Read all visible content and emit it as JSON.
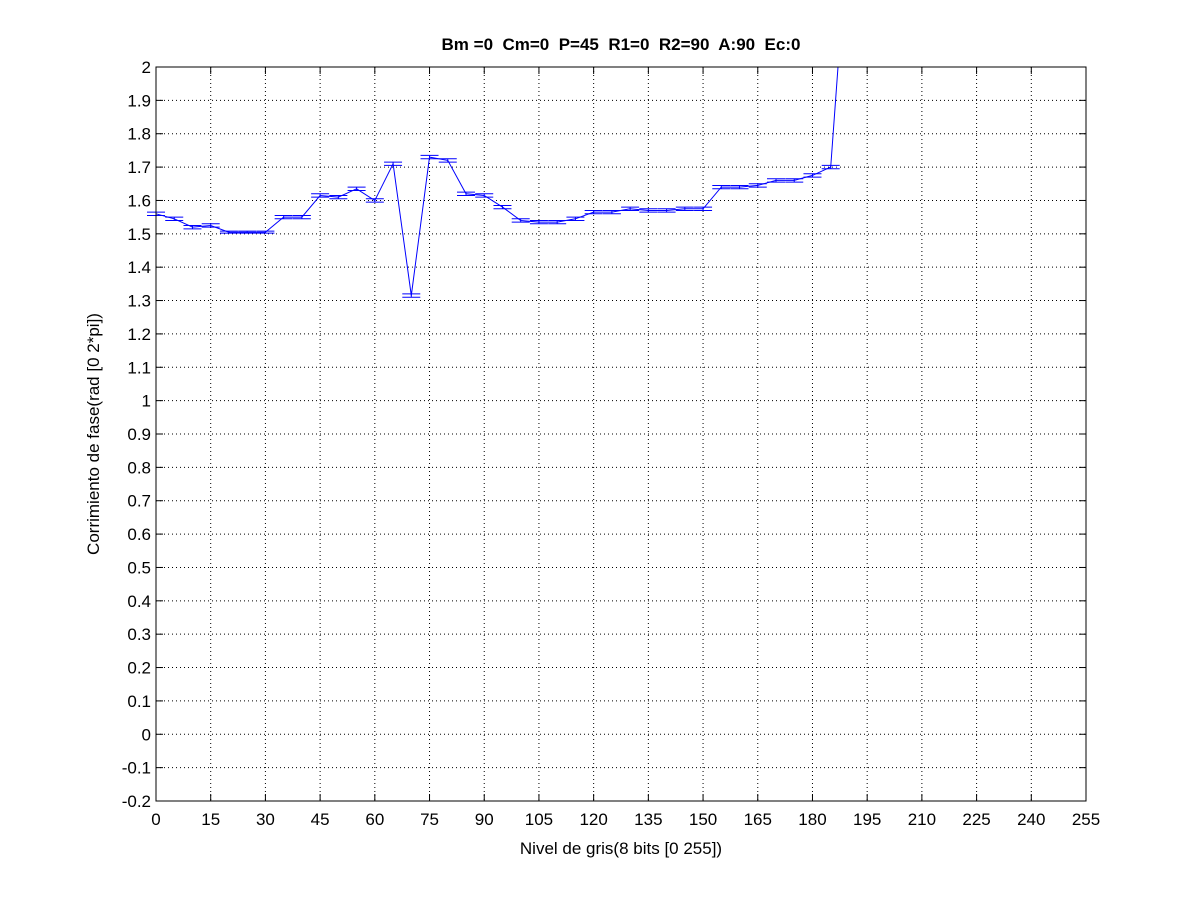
{
  "chart_data": {
    "type": "line",
    "title": "Bm =0  Cm=0  P=45  R1=0  R2=90  A:90  Ec:0",
    "xlabel": "Nivel de gris(8 bits [0 255])",
    "ylabel": "Corrimiento de fase(rad [0 2*pi])",
    "xlim": [
      0,
      255
    ],
    "ylim": [
      -0.2,
      2
    ],
    "x_ticks": [
      "0",
      "15",
      "30",
      "45",
      "60",
      "75",
      "90",
      "105",
      "120",
      "135",
      "150",
      "165",
      "180",
      "195",
      "210",
      "225",
      "240",
      "255"
    ],
    "y_ticks": [
      "-0.2",
      "-0.1",
      "0",
      "0.1",
      "0.2",
      "0.3",
      "0.4",
      "0.5",
      "0.6",
      "0.7",
      "0.8",
      "0.9",
      "1",
      "1.1",
      "1.2",
      "1.3",
      "1.4",
      "1.5",
      "1.6",
      "1.7",
      "1.8",
      "1.9",
      "2"
    ],
    "grid": true,
    "line_color": "#0000ff",
    "series": [
      {
        "x": [
          0,
          5,
          10,
          15,
          20,
          25,
          30,
          35,
          40,
          45,
          50,
          55,
          60,
          65,
          70,
          75,
          80,
          85,
          90,
          95,
          100,
          105,
          110,
          115,
          120,
          125,
          130,
          135,
          140,
          145,
          150,
          155,
          160,
          165,
          170,
          175,
          180,
          185,
          187
        ],
        "y": [
          1.56,
          1.545,
          1.52,
          1.525,
          1.505,
          1.505,
          1.505,
          1.55,
          1.55,
          1.615,
          1.61,
          1.635,
          1.6,
          1.71,
          1.315,
          1.73,
          1.72,
          1.62,
          1.615,
          1.58,
          1.54,
          1.535,
          1.535,
          1.545,
          1.565,
          1.565,
          1.575,
          1.57,
          1.57,
          1.575,
          1.575,
          1.64,
          1.64,
          1.645,
          1.66,
          1.66,
          1.675,
          1.7,
          2.0
        ],
        "errors": [
          0.005,
          0.005,
          0.005,
          0.005,
          0.003,
          0.003,
          0.003,
          0.005,
          0.005,
          0.005,
          0.005,
          0.005,
          0.005,
          0.005,
          0.005,
          0.005,
          0.005,
          0.005,
          0.005,
          0.005,
          0.005,
          0.005,
          0.005,
          0.005,
          0.005,
          0.005,
          0.005,
          0.005,
          0.005,
          0.005,
          0.005,
          0.005,
          0.005,
          0.005,
          0.005,
          0.005,
          0.005,
          0.005,
          0
        ]
      }
    ]
  }
}
